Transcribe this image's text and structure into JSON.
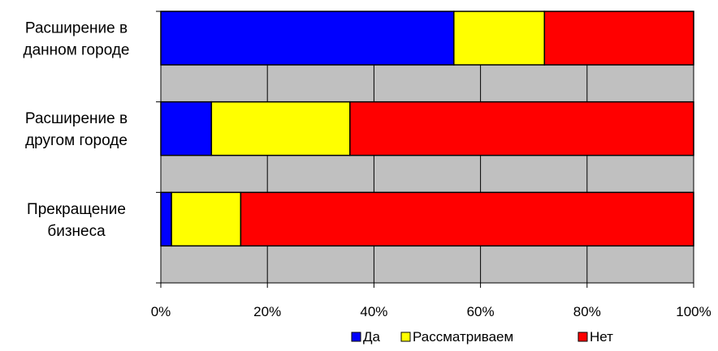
{
  "chart_data": {
    "type": "bar",
    "orientation": "horizontal",
    "stacked": "percent",
    "categories": [
      [
        "Расширение в",
        "данном городе"
      ],
      [
        "Расширение в",
        "другом городе"
      ],
      [
        "Прекращение",
        "бизнеса"
      ]
    ],
    "series": [
      {
        "name": "Да",
        "color": "#0000FF",
        "values": [
          55,
          9.5,
          2
        ]
      },
      {
        "name": "Рассматриваем",
        "color": "#FFFF00",
        "values": [
          17,
          26,
          13
        ]
      },
      {
        "name": "Нет",
        "color": "#FF0000",
        "values": [
          28,
          64.5,
          85
        ]
      }
    ],
    "xlim": [
      0,
      100
    ],
    "xticks": [
      "0%",
      "20%",
      "40%",
      "60%",
      "80%",
      "100%"
    ],
    "grid": "vertical",
    "plot_background": "#C0C0C0",
    "legend_position": "bottom"
  }
}
